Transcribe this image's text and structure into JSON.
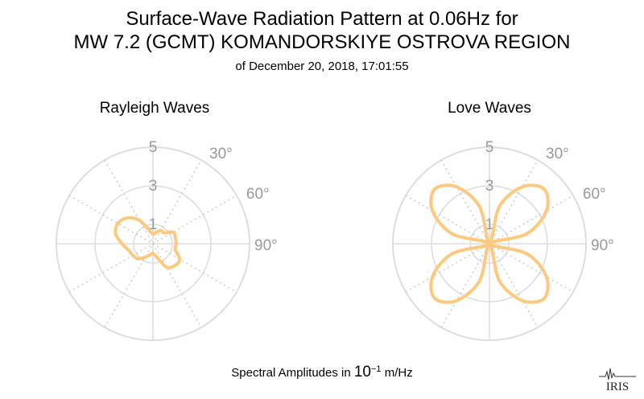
{
  "header": {
    "title_line1": "Surface-Wave Radiation Pattern at 0.06Hz for",
    "title_line2": "MW 7.2 (GCMT) KOMANDORSKIYE OSTROVA REGION",
    "subtitle": "of December 20, 2018, 17:01:55"
  },
  "footer": {
    "prefix": "Spectral Amplitudes in ",
    "base": "10",
    "exponent": "−1",
    "suffix": " m/Hz"
  },
  "logo_text": "IRIS",
  "colors": {
    "curve": "#fcc97e",
    "grid": "#dddddd",
    "spoke": "#c9c9c9",
    "label": "#999999"
  },
  "chart_data": [
    {
      "type": "polar-line",
      "title": "Rayleigh Waves",
      "radial_ticks": [
        1,
        3,
        5
      ],
      "radial_max": 5,
      "angle_ticks": [
        "30°",
        "60°",
        "90°"
      ],
      "grid": true,
      "series": [
        {
          "azimuth_deg": [
            0,
            15,
            30,
            45,
            60,
            75,
            90,
            105,
            120,
            135,
            150,
            165,
            180,
            195,
            210,
            225,
            240,
            255,
            270,
            285,
            300,
            315,
            330,
            345
          ],
          "amplitude": [
            0.5,
            0.6,
            0.8,
            0.8,
            1.2,
            1.2,
            1.2,
            1.2,
            1.6,
            1.6,
            1.4,
            0.7,
            0.5,
            0.6,
            0.8,
            1.1,
            1.2,
            1.3,
            1.6,
            2.0,
            2.1,
            1.9,
            1.4,
            0.7
          ]
        }
      ]
    },
    {
      "type": "polar-line",
      "title": "Love Waves",
      "radial_ticks": [
        1,
        3,
        5
      ],
      "radial_max": 5,
      "angle_ticks": [
        "30°",
        "60°",
        "90°"
      ],
      "grid": true,
      "series": [
        {
          "azimuth_deg": [
            0,
            15,
            30,
            45,
            60,
            75,
            90,
            105,
            120,
            135,
            150,
            165,
            180,
            195,
            210,
            225,
            240,
            255,
            270,
            285,
            300,
            315,
            330,
            345
          ],
          "amplitude": [
            0.0,
            2.0,
            3.4,
            4.0,
            3.4,
            2.0,
            0.0,
            2.0,
            3.4,
            4.0,
            3.4,
            2.0,
            0.0,
            2.0,
            3.4,
            4.0,
            3.4,
            2.0,
            0.0,
            2.0,
            3.4,
            4.0,
            3.4,
            2.0
          ]
        }
      ]
    }
  ]
}
